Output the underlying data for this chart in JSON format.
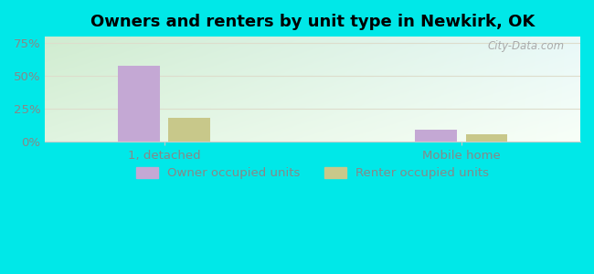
{
  "title": "Owners and renters by unit type in Newkirk, OK",
  "categories": [
    "1, detached",
    "Mobile home"
  ],
  "owner_values": [
    58,
    9
  ],
  "renter_values": [
    18,
    6
  ],
  "owner_color": "#c4a8d4",
  "renter_color": "#c8c88a",
  "background_color": "#00e8e8",
  "plot_bg_color_tl": "#d8ecd8",
  "plot_bg_color_tr": "#e8f4f0",
  "plot_bg_color_bl": "#e0f0e0",
  "plot_bg_color_br": "#f8fef8",
  "yticks": [
    0,
    25,
    50,
    75
  ],
  "ytick_labels": [
    "0%",
    "25%",
    "50%",
    "75%"
  ],
  "ylim": [
    0,
    80
  ],
  "bar_width": 0.28,
  "group_positions": [
    1.0,
    3.0
  ],
  "xlim": [
    0.2,
    3.8
  ],
  "watermark": "City-Data.com",
  "legend_labels": [
    "Owner occupied units",
    "Renter occupied units"
  ],
  "title_fontsize": 13,
  "tick_fontsize": 9.5,
  "legend_fontsize": 9.5,
  "grid_color": "#ddddcc",
  "spine_color": "#cccccc",
  "tick_color": "#888888"
}
